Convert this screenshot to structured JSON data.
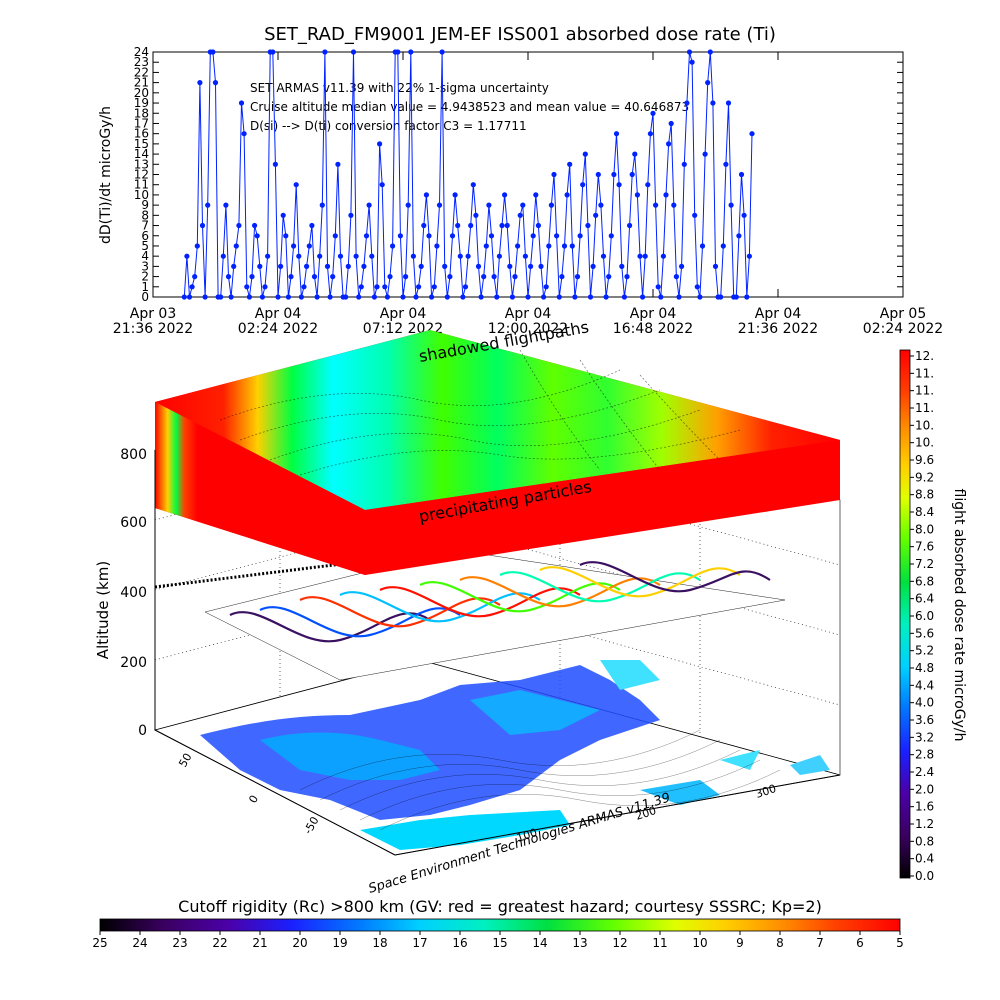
{
  "chart_data": [
    {
      "type": "line",
      "title": "SET_RAD_FM9001  JEM-EF ISS001 absorbed dose rate (Ti)",
      "ylabel": "dD(Ti)/dt microGy/h",
      "ylim": [
        0,
        24
      ],
      "yticks": [
        "0",
        "1",
        "2",
        "3",
        "4",
        "5",
        "6",
        "7",
        "8",
        "9",
        "10",
        "11",
        "12",
        "13",
        "14",
        "15",
        "16",
        "17",
        "18",
        "19",
        "20",
        "21",
        "22",
        "23",
        "24"
      ],
      "xticks": [
        {
          "line1": "Apr 03",
          "line2": "21:36 2022"
        },
        {
          "line1": "Apr 04",
          "line2": "02:24 2022"
        },
        {
          "line1": "Apr 04",
          "line2": "07:12 2022"
        },
        {
          "line1": "Apr 04",
          "line2": "12:00 2022"
        },
        {
          "line1": "Apr 04",
          "line2": "16:48 2022"
        },
        {
          "line1": "Apr 04",
          "line2": "21:36 2022"
        },
        {
          "line1": "Apr 05",
          "line2": "02:24 2022"
        }
      ],
      "annotations": [
        "SET ARMAS v11.39 with 22% 1-sigma uncertainty",
        "Cruise altitude median value = 4.9438523 and mean value = 40.646873",
        "D(si) --> D(ti) conversion factor C3 = 1.17711"
      ],
      "x_hours_from_first_tick": [
        1.2,
        1.3,
        1.4,
        1.5,
        1.6,
        1.7,
        1.8,
        1.9,
        2.0,
        2.1,
        2.2,
        2.3,
        2.4,
        2.5,
        2.6,
        2.7,
        2.8,
        2.9,
        3.0,
        3.1,
        3.2,
        3.3,
        3.4,
        3.5,
        3.6,
        3.7,
        3.8,
        3.9,
        4.0,
        4.1,
        4.2,
        4.3,
        4.4,
        4.5,
        4.6,
        4.7,
        4.8,
        4.9,
        5.0,
        5.1,
        5.2,
        5.3,
        5.4,
        5.5,
        5.6,
        5.7,
        5.8,
        5.9,
        6.0,
        6.1,
        6.2,
        6.3,
        6.4,
        6.5,
        6.6,
        6.7,
        6.8,
        6.9,
        7.0,
        7.1,
        7.2,
        7.3,
        7.4,
        7.5,
        7.6,
        7.7,
        7.8,
        7.9,
        8.0,
        8.1,
        8.2,
        8.3,
        8.4,
        8.5,
        8.6,
        8.7,
        8.8,
        8.9,
        9.0,
        9.1,
        9.2,
        9.3,
        9.4,
        9.5,
        9.6,
        9.7,
        9.8,
        9.9,
        10.0,
        10.1,
        10.2,
        10.3,
        10.4,
        10.5,
        10.6,
        10.7,
        10.8,
        10.9,
        11.0,
        11.1,
        11.2,
        11.3,
        11.4,
        11.5,
        11.6,
        11.7,
        11.8,
        11.9,
        12.0,
        12.1,
        12.2,
        12.3,
        12.4,
        12.5,
        12.6,
        12.7,
        12.8,
        12.9,
        13.0,
        13.1,
        13.2,
        13.3,
        13.4,
        13.5,
        13.6,
        13.7,
        13.8,
        13.9,
        14.0,
        14.1,
        14.2,
        14.3,
        14.4,
        14.5,
        14.6,
        14.7,
        14.8,
        14.9,
        15.0,
        15.1,
        15.2,
        15.3,
        15.4,
        15.5,
        15.6,
        15.7,
        15.8,
        15.9,
        16.0,
        16.1,
        16.2,
        16.3,
        16.4,
        16.5,
        16.6,
        16.7,
        16.8,
        16.9,
        17.0,
        17.1,
        17.2,
        17.3,
        17.4,
        17.5,
        17.6,
        17.7,
        17.8,
        17.9,
        18.0,
        18.1,
        18.2,
        18.3,
        18.4,
        18.5,
        18.6,
        18.7,
        18.8,
        18.9,
        19.0,
        19.1,
        19.2,
        19.3,
        19.4,
        19.5,
        19.6,
        19.7,
        19.8,
        19.9,
        20.0,
        20.1,
        20.2,
        20.3,
        20.4,
        20.5,
        20.6,
        20.7,
        20.8,
        20.9,
        21.0,
        21.1,
        21.2,
        21.3,
        21.4,
        21.5,
        21.6,
        21.7,
        21.8,
        21.9,
        22.0,
        22.1,
        22.2,
        22.3,
        22.4,
        22.5,
        22.6,
        22.7,
        22.8,
        22.9,
        23.0,
        23.1,
        23.2,
        23.3,
        23.4,
        23.5,
        23.6,
        23.7,
        23.8,
        23.9,
        24.0,
        24.1,
        24.2,
        24.3,
        24.4,
        24.5,
        24.6,
        24.7,
        24.8,
        24.9,
        25.0,
        25.1,
        25.2,
        25.3,
        25.4,
        25.5,
        25.6,
        25.7,
        25.8,
        25.9,
        26.0,
        26.1,
        26.2,
        26.3,
        26.4,
        26.5,
        26.6,
        26.7,
        26.8,
        26.9,
        27.0,
        27.1,
        27.2,
        27.3,
        27.4,
        27.5,
        27.6,
        27.7,
        27.8,
        27.9,
        28.0
      ],
      "y_values": [
        0,
        4,
        0,
        1,
        2,
        5,
        21,
        7,
        0,
        9,
        24,
        24,
        21,
        0,
        0,
        4,
        9,
        2,
        0,
        3,
        5,
        7,
        19,
        16,
        1,
        0,
        2,
        7,
        6,
        3,
        0,
        1,
        4,
        24,
        24,
        13,
        0,
        3,
        8,
        6,
        0,
        2,
        5,
        11,
        4,
        0,
        1,
        3,
        5,
        7,
        2,
        0,
        4,
        9,
        24,
        3,
        0,
        2,
        6,
        13,
        4,
        0,
        0,
        3,
        8,
        24,
        4,
        0,
        1,
        3,
        6,
        9,
        4,
        0,
        1,
        15,
        11,
        1,
        0,
        2,
        5,
        24,
        24,
        6,
        0,
        2,
        9,
        24,
        4,
        0,
        1,
        3,
        7,
        10,
        6,
        0,
        1,
        5,
        9,
        24,
        3,
        0,
        2,
        6,
        10,
        7,
        4,
        0,
        1,
        4,
        7,
        11,
        8,
        3,
        0,
        2,
        5,
        9,
        6,
        2,
        0,
        4,
        7,
        10,
        7,
        3,
        0,
        2,
        5,
        8,
        9,
        4,
        0,
        3,
        6,
        10,
        7,
        3,
        0,
        1,
        5,
        9,
        12,
        6,
        0,
        2,
        5,
        10,
        13,
        5,
        0,
        2,
        6,
        11,
        14,
        7,
        0,
        3,
        8,
        12,
        9,
        4,
        0,
        2,
        6,
        12,
        16,
        11,
        3,
        0,
        2,
        7,
        12,
        14,
        10,
        4,
        0,
        4,
        11,
        16,
        18,
        9,
        1,
        0,
        4,
        10,
        15,
        17,
        9,
        2,
        0,
        3,
        13,
        19,
        24,
        23,
        8,
        1,
        0,
        5,
        14,
        21,
        24,
        19,
        3,
        0,
        0,
        5,
        13,
        19,
        9,
        0,
        0,
        6,
        12,
        8,
        0,
        4,
        16
      ],
      "xlim_hours": [
        0,
        28.8
      ],
      "marker_color": "#0022ff"
    },
    {
      "type": "heatmap",
      "description_labels": {
        "shadowed": "shadowed flightpaths",
        "precip": "precipitating particles"
      },
      "zlabel": "Altitude (km)",
      "zticks": [
        "0",
        "200",
        "400",
        "600",
        "800"
      ],
      "lat_ticks": [
        "-50",
        "0",
        "50"
      ],
      "lon_ticks": [
        "100",
        "200",
        "300"
      ],
      "credit": "Space Environment Technologies ARMAS v11.39"
    },
    {
      "type": "colorbar",
      "orientation": "vertical",
      "label": "flight absorbed dose rate microGy/h",
      "ticks": [
        "0.0",
        "0.4",
        "0.8",
        "1.2",
        "1.6",
        "2.0",
        "2.4",
        "2.8",
        "3.2",
        "3.6",
        "4.0",
        "4.4",
        "4.8",
        "5.2",
        "5.6",
        "6.0",
        "6.4",
        "6.8",
        "7.2",
        "7.6",
        "8.0",
        "8.4",
        "8.8",
        "9.2",
        "9.6",
        "10.",
        "10.",
        "11.",
        "11.",
        "11.",
        "12."
      ]
    },
    {
      "type": "colorbar",
      "orientation": "horizontal",
      "label": "Cutoff rigidity (Rc) >800 km (GV: red = greatest hazard; courtesy SSSRC; Kp=2)",
      "ticks": [
        "25",
        "24",
        "23",
        "22",
        "21",
        "20",
        "19",
        "18",
        "17",
        "16",
        "15",
        "14",
        "13",
        "12",
        "11",
        "10",
        "9",
        "8",
        "7",
        "6",
        "5"
      ]
    }
  ]
}
